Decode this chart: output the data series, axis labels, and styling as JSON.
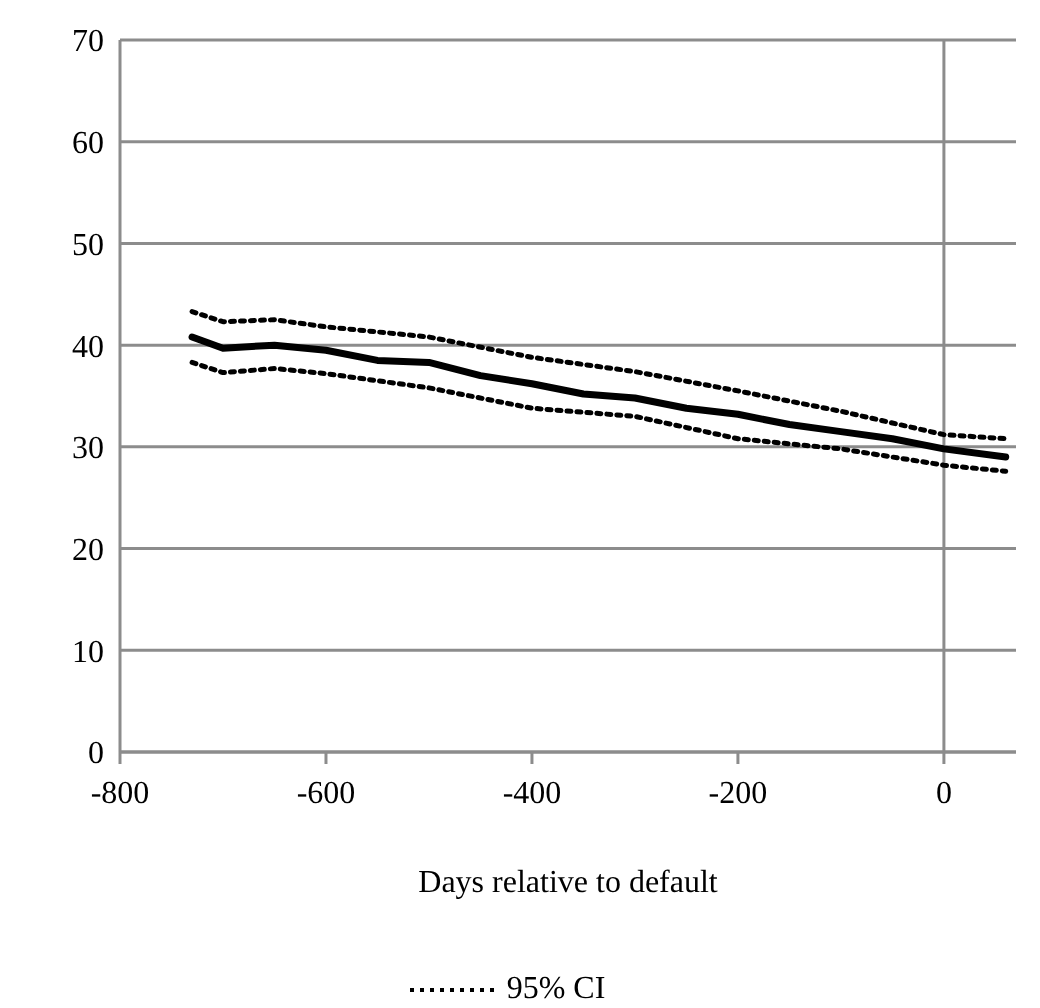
{
  "chart_data": {
    "type": "line",
    "xlabel": "Days relative to default",
    "xlim": [
      -800,
      70
    ],
    "xticks": [
      -800,
      -600,
      -400,
      -200,
      0
    ],
    "ylim": [
      0,
      70
    ],
    "yticks": [
      0,
      10,
      20,
      30,
      40,
      50,
      60,
      70
    ],
    "grid": "y",
    "legend": "bottom",
    "marker": "none",
    "ref_lines": [
      {
        "axis": "x",
        "value": 0,
        "color": "#8c8c8c"
      }
    ],
    "series": [
      {
        "color": "#000000",
        "line_style": "solid",
        "x": [
          -730,
          -700,
          -650,
          -600,
          -550,
          -500,
          -450,
          -400,
          -350,
          -300,
          -250,
          -200,
          -150,
          -100,
          -50,
          0,
          60
        ],
        "values": [
          40.8,
          39.7,
          40,
          39.5,
          38.5,
          38.3,
          37,
          36.2,
          35.2,
          34.8,
          33.8,
          33.2,
          32.2,
          31.5,
          30.8,
          29.8,
          29
        ]
      },
      {
        "name": "95% CI",
        "color": "#000000",
        "line_style": "dotted",
        "x": [
          -730,
          -700,
          -650,
          -600,
          -500,
          -400,
          -300,
          -200,
          -100,
          0,
          60
        ],
        "values": [
          43.3,
          42.3,
          42.5,
          41.8,
          40.8,
          38.8,
          37.4,
          35.5,
          33.5,
          31.2,
          30.8
        ]
      },
      {
        "color": "#000000",
        "line_style": "dotted",
        "x": [
          -730,
          -700,
          -650,
          -600,
          -500,
          -400,
          -300,
          -200,
          -100,
          0,
          60
        ],
        "values": [
          38.3,
          37.3,
          37.7,
          37.2,
          35.8,
          33.8,
          33,
          30.8,
          29.8,
          28.2,
          27.6
        ]
      }
    ]
  }
}
